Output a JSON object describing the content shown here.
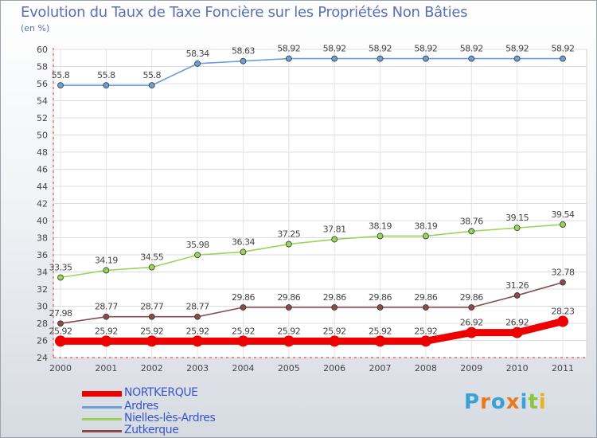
{
  "title": "Evolution du Taux de Taxe Foncière sur les Propriétés Non Bâties",
  "unit": "(en %)",
  "logo": {
    "letters": [
      "P",
      "r",
      "o",
      "x",
      "i",
      "t",
      "i"
    ],
    "colors": [
      "#3aa0d6",
      "#e8771e",
      "#3aa0d6",
      "#e8771e",
      "#3aa0d6",
      "#8cc43a",
      "#e8b21e"
    ]
  },
  "chart_data": {
    "type": "line",
    "x": [
      "2000",
      "2001",
      "2002",
      "2003",
      "2004",
      "2005",
      "2006",
      "2007",
      "2008",
      "2009",
      "2010",
      "2011"
    ],
    "ylim": [
      24,
      60
    ],
    "yticks": [
      "24",
      "26",
      "28",
      "30",
      "32",
      "34",
      "36",
      "38",
      "40",
      "42",
      "44",
      "46",
      "48",
      "50",
      "52",
      "54",
      "56",
      "58",
      "60"
    ],
    "grid": true,
    "legend_position": "bottom-left",
    "series": [
      {
        "name": "NORTKERQUE",
        "color": "#ee0000",
        "values": [
          25.92,
          25.92,
          25.92,
          25.92,
          25.92,
          25.92,
          25.92,
          25.92,
          25.92,
          26.92,
          26.92,
          28.23
        ],
        "labels": [
          "25.92",
          "25.92",
          "25.92",
          "25.92",
          "25.92",
          "25.92",
          "25.92",
          "25.92",
          "25.92",
          "26.92",
          "26.92",
          "28.23"
        ]
      },
      {
        "name": "Ardres",
        "color": "#6a9fd8",
        "values": [
          55.8,
          55.8,
          55.8,
          58.34,
          58.63,
          58.92,
          58.92,
          58.92,
          58.92,
          58.92,
          58.92,
          58.92
        ],
        "labels": [
          "55.8",
          "55.8",
          "55.8",
          "58.34",
          "58.63",
          "58.92",
          "58.92",
          "58.92",
          "58.92",
          "58.92",
          "58.92",
          "58.92"
        ]
      },
      {
        "name": "Nielles-lès-Ardres",
        "color": "#9ad45a",
        "values": [
          33.35,
          34.19,
          34.55,
          35.98,
          36.34,
          37.25,
          37.81,
          38.19,
          38.19,
          38.76,
          39.15,
          39.54
        ],
        "labels": [
          "33.35",
          "34.19",
          "34.55",
          "35.98",
          "36.34",
          "37.25",
          "37.81",
          "38.19",
          "38.19",
          "38.76",
          "39.15",
          "39.54"
        ]
      },
      {
        "name": "Zutkerque",
        "color": "#8c4a4a",
        "values": [
          27.98,
          28.77,
          28.77,
          28.77,
          29.86,
          29.86,
          29.86,
          29.86,
          29.86,
          29.86,
          31.26,
          32.78
        ],
        "labels": [
          "27.98",
          "28.77",
          "28.77",
          "28.77",
          "29.86",
          "29.86",
          "29.86",
          "29.86",
          "29.86",
          "29.86",
          "31.26",
          "32.78"
        ]
      }
    ]
  }
}
